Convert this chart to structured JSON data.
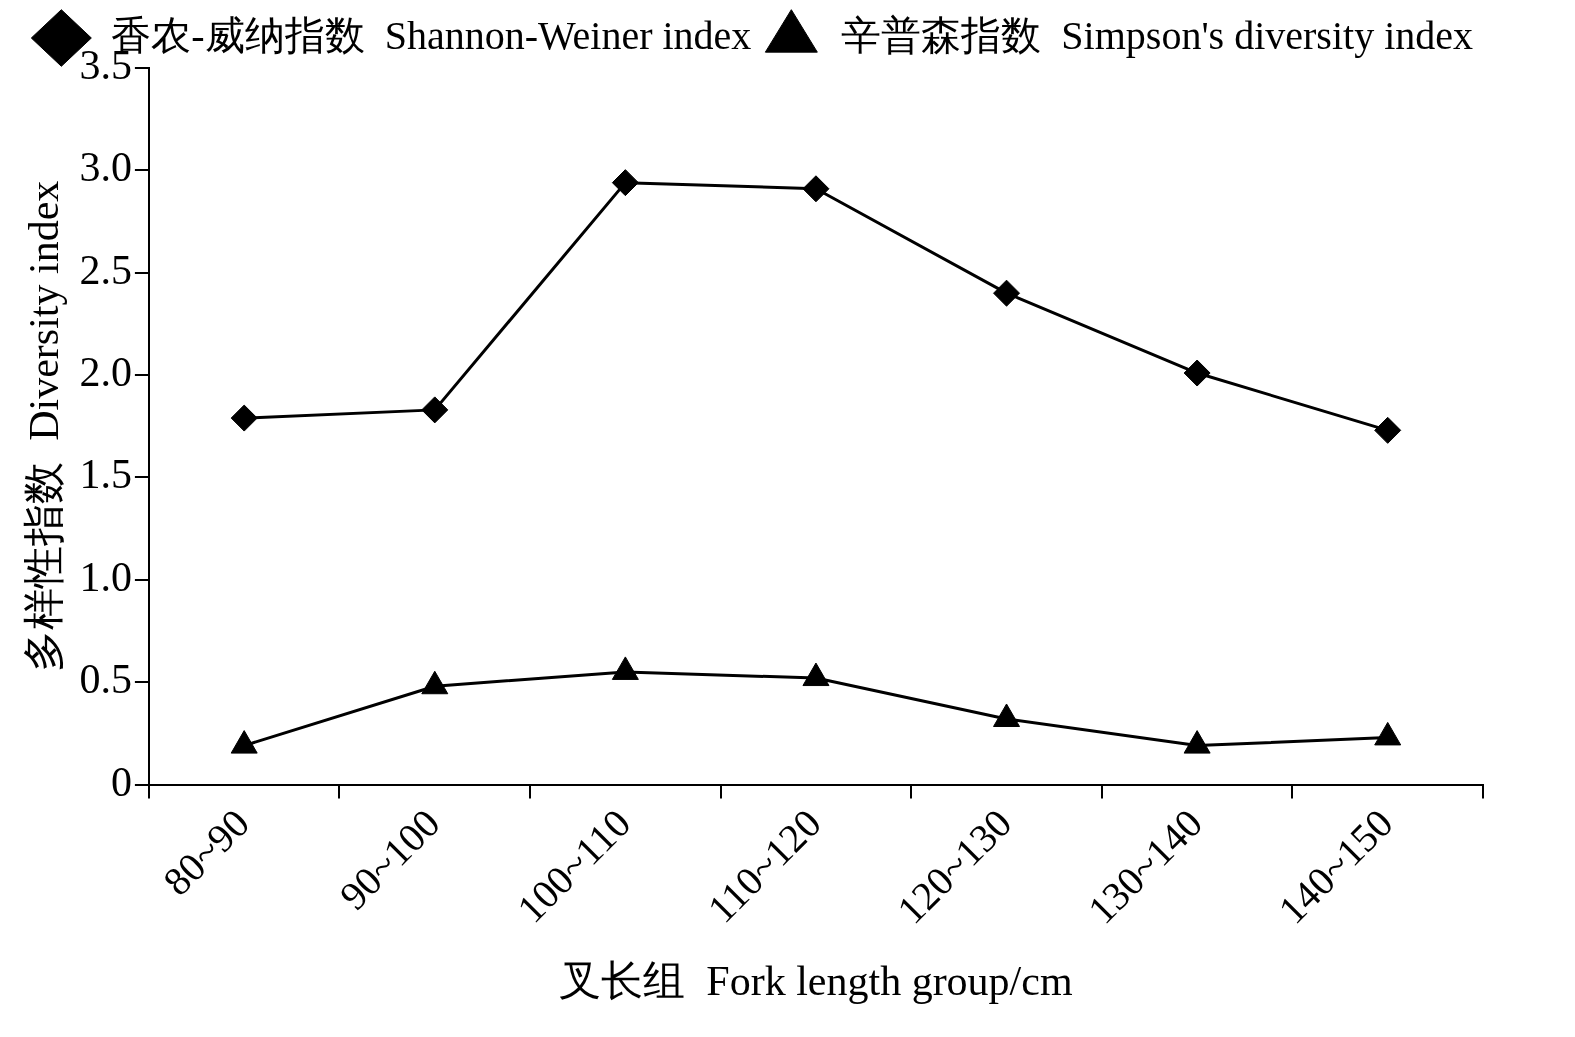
{
  "chart_data": {
    "type": "line",
    "xlabel": "叉长组  Fork length group/cm",
    "ylabel": "多样性指数  Diversity index",
    "categories": [
      "80~90",
      "90~100",
      "100~110",
      "110~120",
      "120~130",
      "130~140",
      "140~150"
    ],
    "series": [
      {
        "name": "香农-威纳指数  Shannon-Weiner index",
        "color": "#000000",
        "marker": "diamond",
        "values": [
          1.79,
          1.83,
          2.94,
          2.91,
          2.4,
          2.01,
          1.73
        ]
      },
      {
        "name": "辛普森指数  Simpson's diversity index",
        "color": "#000000",
        "marker": "triangle",
        "values": [
          0.19,
          0.48,
          0.55,
          0.52,
          0.32,
          0.19,
          0.23
        ]
      }
    ],
    "ylim": [
      0,
      3.5
    ],
    "yticks": [
      0,
      0.5,
      {
        "value": 1,
        "label": "1.0"
      },
      1.5,
      {
        "value": 2,
        "label": "2.0"
      },
      2.5,
      {
        "value": 3,
        "label": "3.0"
      },
      3.5
    ],
    "grid": false,
    "legend": "top",
    "line_style": "solid"
  }
}
